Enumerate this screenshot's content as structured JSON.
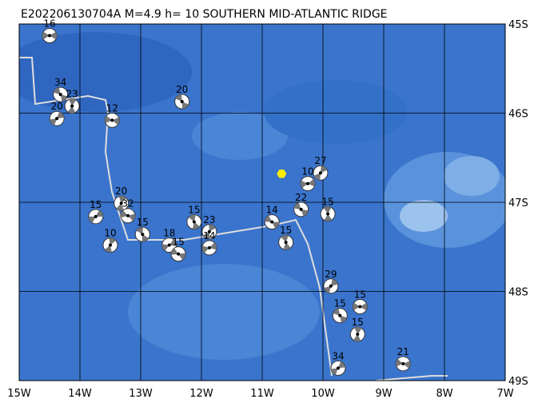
{
  "title": "E202206130704A  M=4.9  h= 10 SOUTHERN MID-ATLANTIC RIDGE",
  "lon_ticks": [
    {
      "value": -15,
      "label": "15W"
    },
    {
      "value": -14,
      "label": "14W"
    },
    {
      "value": -13,
      "label": "13W"
    },
    {
      "value": -12,
      "label": "12W"
    },
    {
      "value": -11,
      "label": "11W"
    },
    {
      "value": -10,
      "label": "10W"
    },
    {
      "value": -9,
      "label": "9W"
    },
    {
      "value": -8,
      "label": "8W"
    },
    {
      "value": -7,
      "label": "7W"
    }
  ],
  "lat_ticks": [
    {
      "value": -45,
      "label": "45S"
    },
    {
      "value": -46,
      "label": "46S"
    },
    {
      "value": -47,
      "label": "47S"
    },
    {
      "value": -48,
      "label": "48S"
    },
    {
      "value": -49,
      "label": "49S"
    }
  ],
  "lon_lim": [
    -15,
    -7
  ],
  "lat_lim": [
    -45,
    -49
  ],
  "epicenter": {
    "lon": -10.68,
    "lat": -46.68
  },
  "events": [
    {
      "label": "16",
      "lon": -14.5,
      "lat": -45.13
    },
    {
      "label": "34",
      "lon": -14.32,
      "lat": -45.79
    },
    {
      "label": "23",
      "lon": -14.13,
      "lat": -45.92
    },
    {
      "label": "20",
      "lon": -14.38,
      "lat": -46.06
    },
    {
      "label": "12",
      "lon": -13.47,
      "lat": -46.08
    },
    {
      "label": "20",
      "lon": -12.32,
      "lat": -45.87
    },
    {
      "label": "20",
      "lon": -13.32,
      "lat": -47.01
    },
    {
      "label": "15",
      "lon": -13.74,
      "lat": -47.16
    },
    {
      "label": "32",
      "lon": -13.21,
      "lat": -47.15
    },
    {
      "label": "15",
      "lon": -12.97,
      "lat": -47.36
    },
    {
      "label": "10",
      "lon": -13.5,
      "lat": -47.48
    },
    {
      "label": "18",
      "lon": -12.53,
      "lat": -47.48
    },
    {
      "label": "15",
      "lon": -12.38,
      "lat": -47.58
    },
    {
      "label": "15",
      "lon": -12.12,
      "lat": -47.22
    },
    {
      "label": "23",
      "lon": -11.87,
      "lat": -47.33
    },
    {
      "label": "14",
      "lon": -11.87,
      "lat": -47.51
    },
    {
      "label": "14",
      "lon": -10.84,
      "lat": -47.22
    },
    {
      "label": "15",
      "lon": -10.61,
      "lat": -47.45
    },
    {
      "label": "27",
      "lon": -10.04,
      "lat": -46.67
    },
    {
      "label": "10",
      "lon": -10.25,
      "lat": -46.79
    },
    {
      "label": "22",
      "lon": -10.36,
      "lat": -47.08
    },
    {
      "label": "15",
      "lon": -9.92,
      "lat": -47.13
    },
    {
      "label": "29",
      "lon": -9.87,
      "lat": -47.94
    },
    {
      "label": "15",
      "lon": -9.39,
      "lat": -48.17
    },
    {
      "label": "15",
      "lon": -9.72,
      "lat": -48.27
    },
    {
      "label": "15",
      "lon": -9.43,
      "lat": -48.48
    },
    {
      "label": "34",
      "lon": -9.75,
      "lat": -48.86
    },
    {
      "label": "21",
      "lon": -8.68,
      "lat": -48.81
    }
  ]
}
